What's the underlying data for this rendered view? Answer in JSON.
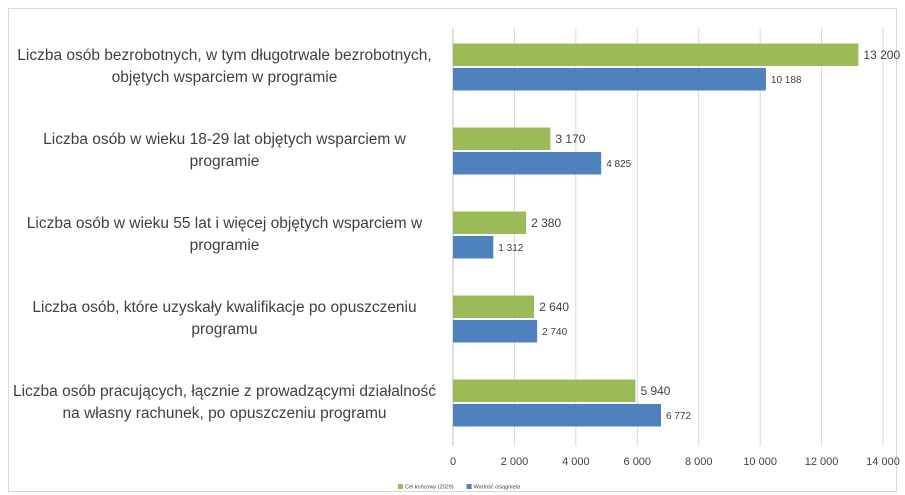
{
  "chart_data": {
    "type": "hbar",
    "categories": [
      "Liczba osób bezrobotnych, w tym długotrwale bezrobotnych, objętych wsparciem w programie",
      "Liczba osób w wieku 18-29 lat objętych wsparciem w programie",
      "Liczba osób w wieku 55 lat i więcej objętych wsparciem w programie",
      "Liczba osób, które uzyskały kwalifikacje po opuszczeniu programu",
      "Liczba osób pracujących, łącznie z prowadzącymi działalność na własny rachunek, po opuszczeniu programu"
    ],
    "series": [
      {
        "name": "Cel końcowy (2029)",
        "color": "#9bbb59",
        "values": [
          13200,
          3170,
          2380,
          2640,
          5940
        ],
        "value_labels": [
          "13 200",
          "3 170",
          "2 380",
          "2 640",
          "5 940"
        ]
      },
      {
        "name": "Wartość osiągnięta",
        "color": "#4f81bd",
        "values": [
          10188,
          4825,
          1312,
          2740,
          6772
        ],
        "value_labels": [
          "10 188",
          "4 825",
          "1 312",
          "2 740",
          "6 772"
        ]
      }
    ],
    "xlim": [
      0,
      14000
    ],
    "xticks": [
      0,
      {
        "value": 2000,
        "label": "2 000"
      },
      {
        "value": 4000,
        "label": "4 000"
      },
      {
        "value": 6000,
        "label": "6 000"
      },
      {
        "value": 8000,
        "label": "8 000"
      },
      {
        "value": 10000,
        "label": "10 000"
      },
      {
        "value": 12000,
        "label": "12 000"
      },
      {
        "value": 14000,
        "label": "14 000"
      }
    ],
    "grid": true,
    "legend": "bottom"
  }
}
